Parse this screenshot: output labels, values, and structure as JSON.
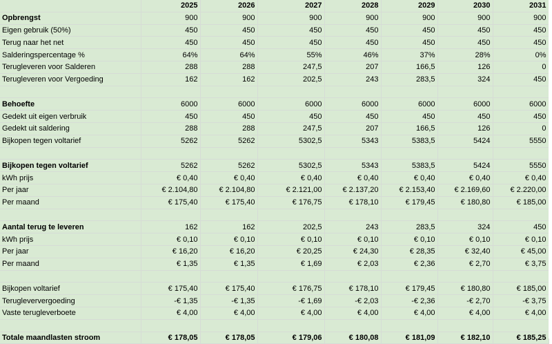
{
  "years": [
    "2025",
    "2026",
    "2027",
    "2028",
    "2029",
    "2030",
    "2031"
  ],
  "rows": [
    {
      "label": "Opbrengst",
      "bold": true,
      "values": [
        "900",
        "900",
        "900",
        "900",
        "900",
        "900",
        "900"
      ]
    },
    {
      "label": "Eigen gebruik (50%)",
      "values": [
        "450",
        "450",
        "450",
        "450",
        "450",
        "450",
        "450"
      ]
    },
    {
      "label": "Terug naar het net",
      "values": [
        "450",
        "450",
        "450",
        "450",
        "450",
        "450",
        "450"
      ]
    },
    {
      "label": "Salderingspercentage %",
      "values": [
        "64%",
        "64%",
        "55%",
        "46%",
        "37%",
        "28%",
        "0%"
      ]
    },
    {
      "label": "Terugleveren voor Salderen",
      "values": [
        "288",
        "288",
        "247,5",
        "207",
        "166,5",
        "126",
        "0"
      ]
    },
    {
      "label": "Terugleveren voor Vergoeding",
      "values": [
        "162",
        "162",
        "202,5",
        "243",
        "283,5",
        "324",
        "450"
      ]
    },
    {
      "blank": true
    },
    {
      "label": "Behoefte",
      "bold": true,
      "values": [
        "6000",
        "6000",
        "6000",
        "6000",
        "6000",
        "6000",
        "6000"
      ]
    },
    {
      "label": "Gedekt uit eigen verbruik",
      "values": [
        "450",
        "450",
        "450",
        "450",
        "450",
        "450",
        "450"
      ]
    },
    {
      "label": "Gedekt uit saldering",
      "values": [
        "288",
        "288",
        "247,5",
        "207",
        "166,5",
        "126",
        "0"
      ]
    },
    {
      "label": "Bijkopen tegen voltarief",
      "values": [
        "5262",
        "5262",
        "5302,5",
        "5343",
        "5383,5",
        "5424",
        "5550"
      ]
    },
    {
      "blank": true
    },
    {
      "label": "Bijkopen tegen voltarief",
      "bold": true,
      "values": [
        "5262",
        "5262",
        "5302,5",
        "5343",
        "5383,5",
        "5424",
        "5550"
      ]
    },
    {
      "label": "kWh prijs",
      "values": [
        "€ 0,40",
        "€ 0,40",
        "€ 0,40",
        "€ 0,40",
        "€ 0,40",
        "€ 0,40",
        "€ 0,40"
      ]
    },
    {
      "label": "Per jaar",
      "values": [
        "€ 2.104,80",
        "€ 2.104,80",
        "€ 2.121,00",
        "€ 2.137,20",
        "€ 2.153,40",
        "€ 2.169,60",
        "€ 2.220,00"
      ]
    },
    {
      "label": "Per maand",
      "values": [
        "€ 175,40",
        "€ 175,40",
        "€ 176,75",
        "€ 178,10",
        "€ 179,45",
        "€ 180,80",
        "€ 185,00"
      ]
    },
    {
      "blank": true
    },
    {
      "label": "Aantal terug te leveren",
      "bold": true,
      "values": [
        "162",
        "162",
        "202,5",
        "243",
        "283,5",
        "324",
        "450"
      ]
    },
    {
      "label": "kWh prijs",
      "values": [
        "€ 0,10",
        "€ 0,10",
        "€ 0,10",
        "€ 0,10",
        "€ 0,10",
        "€ 0,10",
        "€ 0,10"
      ]
    },
    {
      "label": "Per jaar",
      "values": [
        "€ 16,20",
        "€ 16,20",
        "€ 20,25",
        "€ 24,30",
        "€ 28,35",
        "€ 32,40",
        "€ 45,00"
      ]
    },
    {
      "label": "Per maand",
      "values": [
        "€ 1,35",
        "€ 1,35",
        "€ 1,69",
        "€ 2,03",
        "€ 2,36",
        "€ 2,70",
        "€ 3,75"
      ]
    },
    {
      "blank": true
    },
    {
      "label": "Bijkopen voltarief",
      "topline": true,
      "values": [
        "€ 175,40",
        "€ 175,40",
        "€ 176,75",
        "€ 178,10",
        "€ 179,45",
        "€ 180,80",
        "€ 185,00"
      ]
    },
    {
      "label": "Terugleververgoeding",
      "values": [
        "-€ 1,35",
        "-€ 1,35",
        "-€ 1,69",
        "-€ 2,03",
        "-€ 2,36",
        "-€ 2,70",
        "-€ 3,75"
      ]
    },
    {
      "label": "Vaste terugleverboete",
      "values": [
        "€ 4,00",
        "€ 4,00",
        "€ 4,00",
        "€ 4,00",
        "€ 4,00",
        "€ 4,00",
        "€ 4,00"
      ]
    },
    {
      "blank": true
    },
    {
      "label": "Totale maandlasten stroom",
      "total": true,
      "values": [
        "€ 178,05",
        "€ 178,05",
        "€ 179,06",
        "€ 180,08",
        "€ 181,09",
        "€ 182,10",
        "€ 185,25"
      ]
    }
  ]
}
